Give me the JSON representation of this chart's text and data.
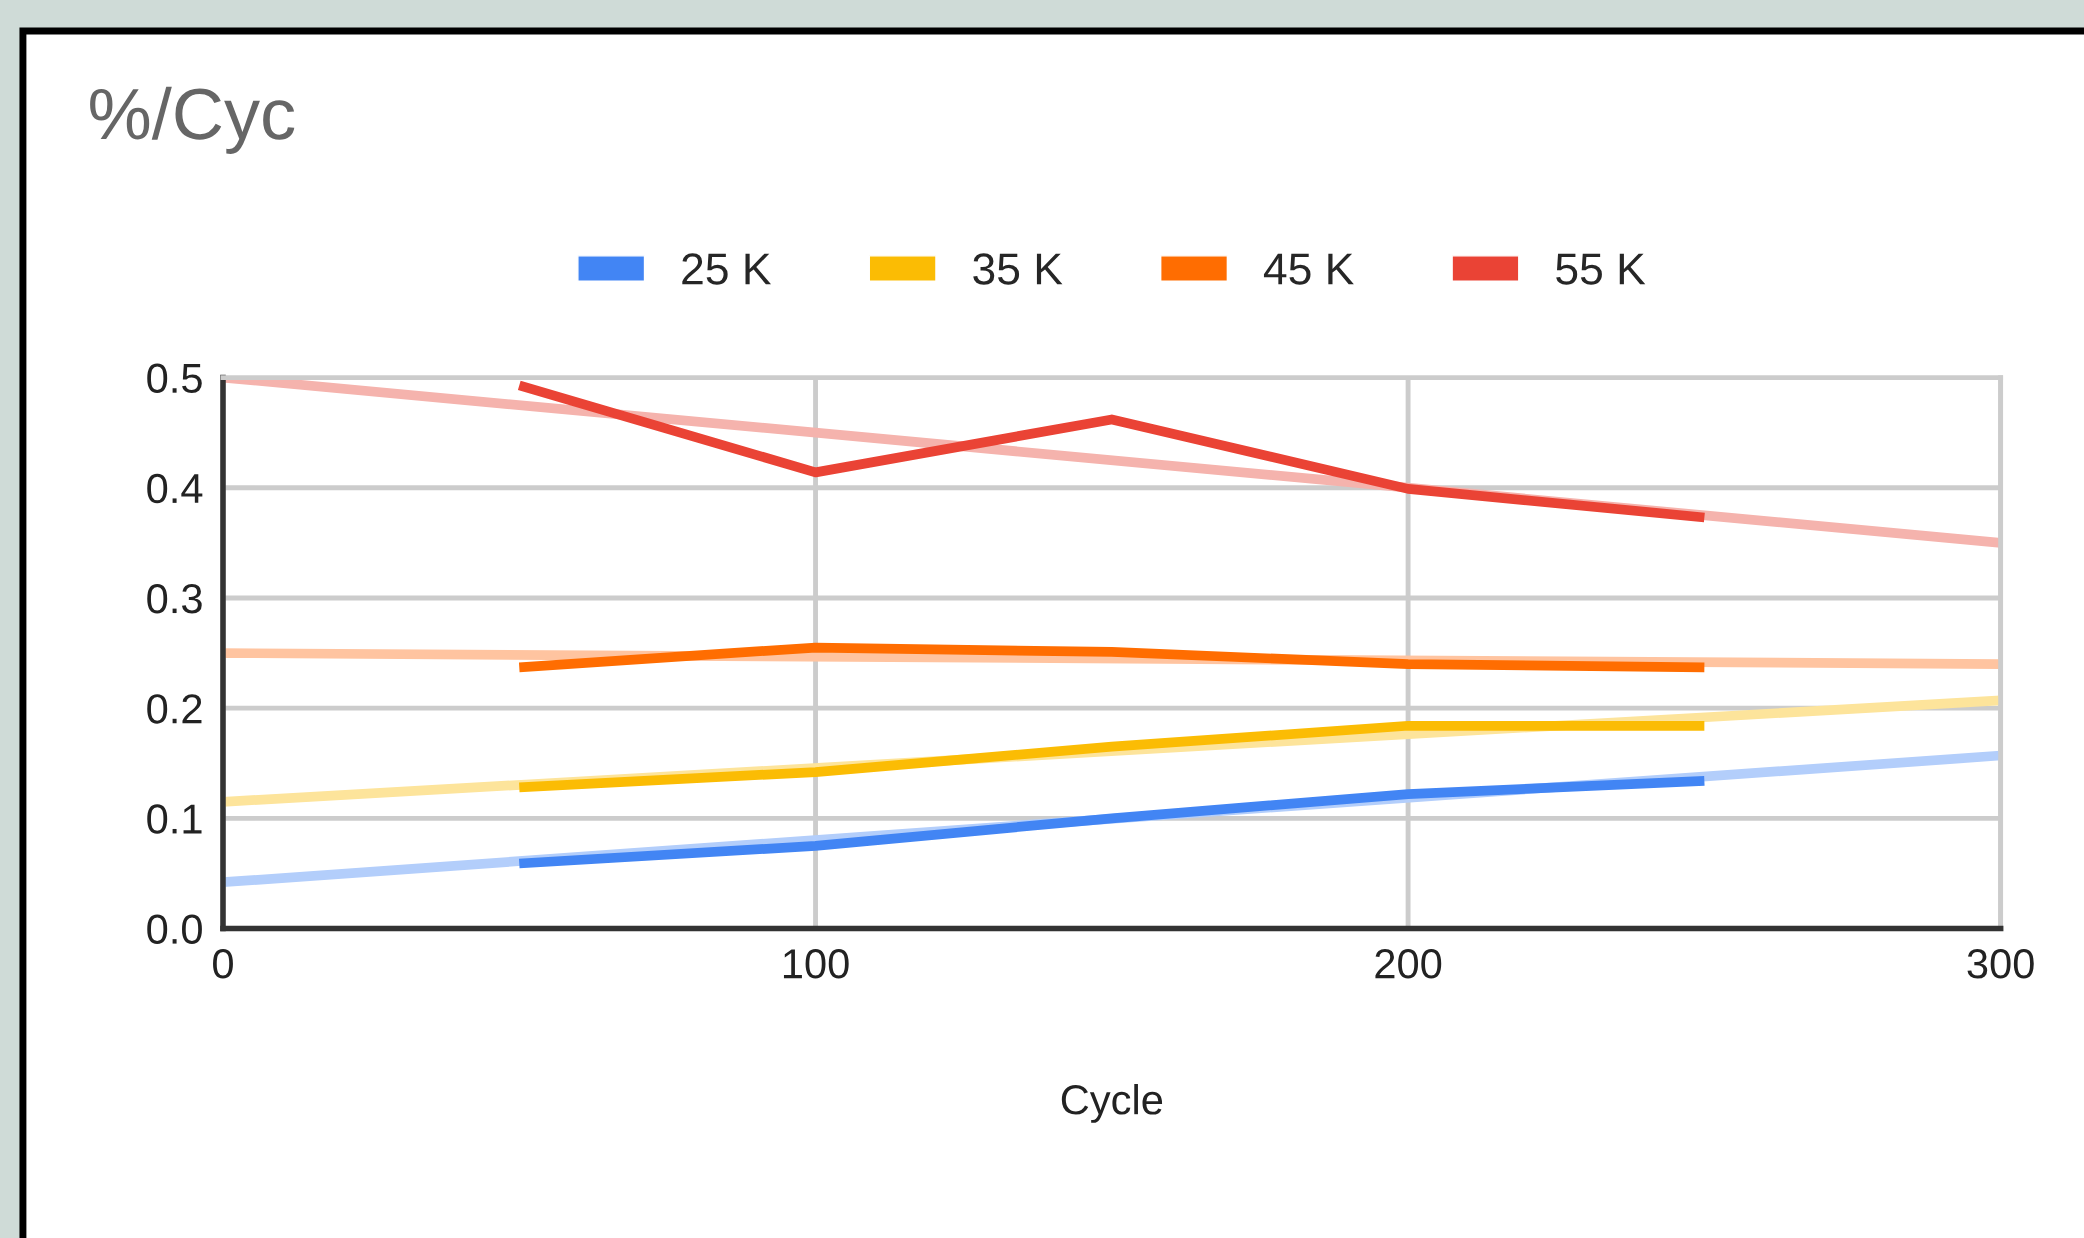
{
  "chart_data": {
    "type": "line",
    "title": "%/Cyc",
    "xlabel": "Cycle",
    "xlim": [
      0,
      300
    ],
    "xticks": [
      0,
      100,
      200,
      300
    ],
    "ylim": [
      0,
      0.5
    ],
    "yticks": [
      "0.0",
      0.1,
      0.2,
      0.3,
      0.4,
      0.5
    ],
    "grid": true,
    "legend": "top",
    "marker": "none",
    "line_style": "solid",
    "series": [
      {
        "name": "25 K",
        "color": "#4285f4",
        "x": [
          50,
          100,
          150,
          200,
          250
        ],
        "values": [
          0.059,
          0.075,
          0.1,
          0.122,
          0.134
        ]
      },
      {
        "name": "35 K",
        "color": "#fbbc04",
        "x": [
          50,
          100,
          150,
          200,
          250
        ],
        "values": [
          0.128,
          0.142,
          0.165,
          0.184,
          0.184
        ]
      },
      {
        "name": "45 K",
        "color": "#ff6d01",
        "x": [
          50,
          100,
          150,
          200,
          250
        ],
        "values": [
          0.237,
          0.255,
          0.251,
          0.24,
          0.237
        ]
      },
      {
        "name": "55 K",
        "color": "#ea4335",
        "x": [
          50,
          100,
          150,
          200,
          250
        ],
        "values": [
          0.493,
          0.414,
          0.462,
          0.399,
          0.373
        ]
      },
      {
        "type": "line",
        "color": "#b3cefb",
        "x": [
          0,
          300
        ],
        "values": [
          0.042,
          0.157
        ]
      },
      {
        "type": "line",
        "color": "#fde49b",
        "x": [
          0,
          300
        ],
        "values": [
          0.115,
          0.207
        ]
      },
      {
        "type": "line",
        "color": "#ffc4a0",
        "x": [
          0,
          300
        ],
        "values": [
          0.25,
          0.24
        ]
      },
      {
        "type": "line",
        "color": "#f5b3ad",
        "x": [
          0,
          300
        ],
        "values": [
          0.5,
          0.35
        ]
      }
    ]
  }
}
